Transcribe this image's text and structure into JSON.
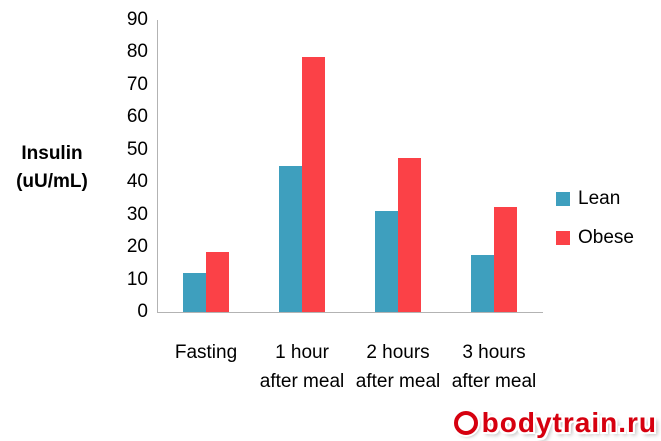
{
  "chart_data": {
    "type": "bar",
    "title": "",
    "ylabel": "Insulin\n(uU/mL)",
    "xlabel": "",
    "categories": [
      "Fasting",
      "1 hour after meal",
      "2 hours after meal",
      "3 hours after meal"
    ],
    "series": [
      {
        "name": "Lean",
        "color": "#3e9fbe",
        "values": [
          12,
          45,
          31,
          17.5
        ]
      },
      {
        "name": "Obese",
        "color": "#fb4147",
        "values": [
          18.5,
          78.5,
          47.5,
          32.5
        ]
      }
    ],
    "ylim": [
      0,
      90
    ],
    "yticks": [
      0,
      10,
      20,
      30,
      40,
      50,
      60,
      70,
      80,
      90
    ],
    "grid": false,
    "legend_position": "right",
    "axis_color": "#b3b3b3"
  },
  "watermark": {
    "text": "bodytrain.ru",
    "color": "#d6000f",
    "icon": "ring-icon"
  }
}
